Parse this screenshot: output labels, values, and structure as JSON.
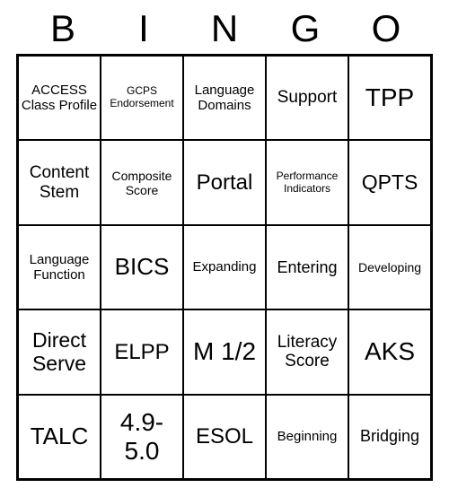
{
  "header": {
    "letters": [
      "B",
      "I",
      "N",
      "G",
      "O"
    ]
  },
  "grid": {
    "type": "table",
    "columns": 5,
    "rows": 5,
    "border_color": "#000000",
    "background_color": "#ffffff",
    "text_color": "#000000",
    "cells": [
      {
        "text": "ACCESS Class Profile",
        "fontsize": 15
      },
      {
        "text": "GCPS Endorsement",
        "fontsize": 12
      },
      {
        "text": "Language Domains",
        "fontsize": 15
      },
      {
        "text": "Support",
        "fontsize": 19
      },
      {
        "text": "TPP",
        "fontsize": 28
      },
      {
        "text": "Content Stem",
        "fontsize": 19
      },
      {
        "text": "Composite Score",
        "fontsize": 14
      },
      {
        "text": "Portal",
        "fontsize": 24
      },
      {
        "text": "Performance Indicators",
        "fontsize": 12
      },
      {
        "text": "QPTS",
        "fontsize": 23
      },
      {
        "text": "Language Function",
        "fontsize": 15
      },
      {
        "text": "BICS",
        "fontsize": 26
      },
      {
        "text": "Expanding",
        "fontsize": 15
      },
      {
        "text": "Entering",
        "fontsize": 18
      },
      {
        "text": "Developing",
        "fontsize": 14
      },
      {
        "text": "Direct Serve",
        "fontsize": 23
      },
      {
        "text": "ELPP",
        "fontsize": 24
      },
      {
        "text": "M 1/2",
        "fontsize": 28
      },
      {
        "text": "Literacy Score",
        "fontsize": 19
      },
      {
        "text": "AKS",
        "fontsize": 28
      },
      {
        "text": "TALC",
        "fontsize": 26
      },
      {
        "text": "4.9-5.0",
        "fontsize": 28
      },
      {
        "text": "ESOL",
        "fontsize": 24
      },
      {
        "text": "Beginning",
        "fontsize": 15
      },
      {
        "text": "Bridging",
        "fontsize": 18
      }
    ]
  }
}
